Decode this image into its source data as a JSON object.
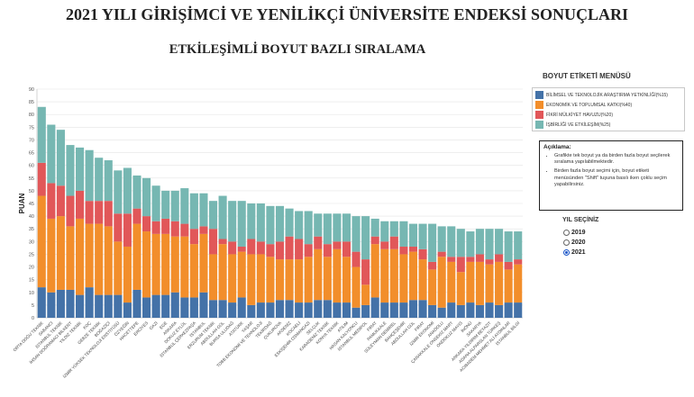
{
  "page": {
    "title": "2021 YILI GİRİŞİMCİ VE YENİLİKÇİ ÜNİVERSİTE ENDEKSİ SONUÇLARI",
    "subtitle": "ETKİLEŞİMLİ BOYUT BAZLI SIRALAMA"
  },
  "legend": {
    "title": "BOYUT ETİKETİ MENÜSÜ",
    "items": [
      {
        "label": "BİLİMSEL VE TEKNOLOJİK ARAŞTIRMA YETKİNLİĞİ(%15)",
        "color": "#4472a8"
      },
      {
        "label": "EKONOMİK VE TOPLUMSAL KATKI(%40)",
        "color": "#f28e2b"
      },
      {
        "label": "FİKRİ MÜLKİYET HAVUZU(%20)",
        "color": "#e15759"
      },
      {
        "label": "İŞBİRLİĞİ VE ETKİLEŞİM(%25)",
        "color": "#76b7b2"
      }
    ]
  },
  "note": {
    "title": "Açıklama:",
    "items": [
      "Grafikte tek boyut ya da birden fazla boyut seçilerek sıralama yapılabilmektedir.",
      "Birden fazla boyut seçimi için, boyut etiketi menüsünden \"Shift\" tuşuna basılı iken çoklu seçim yapabilirsiniz."
    ]
  },
  "year_selector": {
    "title": "YIL SEÇİNİZ",
    "options": [
      {
        "label": "2019",
        "selected": false
      },
      {
        "label": "2020",
        "selected": false
      },
      {
        "label": "2021",
        "selected": true
      }
    ]
  },
  "chart_data": {
    "type": "bar",
    "stacked": true,
    "ylabel": "PUAN",
    "xlabel": "",
    "ylim": [
      0,
      90
    ],
    "yticks": [
      0,
      5,
      10,
      15,
      20,
      25,
      30,
      35,
      40,
      45,
      50,
      55,
      60,
      65,
      70,
      75,
      80,
      85,
      90
    ],
    "grid": true,
    "categories": [
      "ORTA DOĞU TEKNİK",
      "SABANCI",
      "İSTANBUL TEKNİK",
      "İHSAN DOĞRAMACI BİLKENT",
      "YILDIZ TEKNİK",
      "KOÇ",
      "GEBZE TEKNİK",
      "BOĞAZİÇİ",
      "İZMİR YÜKSEK TEKNOLOJİ ENSTİTÜSÜ",
      "ÖZYEĞİN",
      "HACETTEPE",
      "ERCİYES",
      "GAZİ",
      "EGE",
      "ANKARA",
      "DOKUZ EYLÜL",
      "İSTANBUL ÇERKEZPAŞA",
      "İSTANBUL",
      "ERZURUM TEKNİK",
      "ABDULLAH GÜL",
      "BURSA ULUDAĞ",
      "ATATÜRK",
      "YAŞAR",
      "TOBB EKONOMİ VE TEKNOLOJİ",
      "TEKİRDAĞ",
      "ÇUKUROVA",
      "AKDENİZ",
      "KOCAELİ",
      "ESKİŞEHİR OSMANGAZİ",
      "SELÇUK",
      "KARADENİZ TEKNİK",
      "KONYA TEKNİK",
      "ATILIM",
      "HASAN KALYONCU",
      "İSTANBUL MEDİPOL",
      "FIRAT",
      "PAMUKKALE",
      "SÜLEYMAN DEMİREL",
      "BAHÇEŞEHİR",
      "ABDULLAH GÜL",
      "FIRAT",
      "İZMİR EKONOMİ",
      "ANADOLU",
      "ÇANAKKALE ONSEKİZ MART",
      "ONDOKUZ MAYIS",
      "İNÖNÜ",
      "SAKARYA",
      "ANKARA YILDIRIM BEYAZIT",
      "ADANA ALPARSLAN TÜRKEŞ",
      "ACIBADEM MEHMET ALİ AYDINLAR",
      "İSTANBUL BİLGİ"
    ],
    "series": [
      {
        "name": "BİLİMSEL VE TEKNOLOJİK ARAŞTIRMA YETKİNLİĞİ(%15)",
        "color": "#4472a8",
        "values": [
          12,
          10,
          11,
          11,
          9,
          12,
          9,
          9,
          9,
          6,
          11,
          8,
          9,
          9,
          10,
          8,
          8,
          10,
          7,
          7,
          6,
          8,
          5,
          6,
          6,
          7,
          7,
          6,
          6,
          7,
          7,
          6,
          6,
          4,
          5,
          8,
          6,
          6,
          6,
          7,
          7,
          5,
          4,
          6,
          5,
          6,
          5,
          6,
          5,
          6,
          6
        ]
      },
      {
        "name": "EKONOMİK VE TOPLUMSAL KATKI(%40)",
        "color": "#f28e2b",
        "values": [
          36,
          29,
          29,
          25,
          30,
          25,
          28,
          27,
          21,
          22,
          26,
          26,
          24,
          24,
          22,
          24,
          21,
          23,
          18,
          22,
          19,
          18,
          20,
          19,
          18,
          16,
          16,
          17,
          18,
          20,
          17,
          21,
          18,
          16,
          8,
          21,
          21,
          21,
          19,
          19,
          16,
          14,
          20,
          16,
          13,
          16,
          17,
          15,
          17,
          13,
          15
        ]
      },
      {
        "name": "FİKRİ MÜLKİYET HAVUZU(%20)",
        "color": "#e15759",
        "values": [
          13,
          14,
          12,
          12,
          11,
          9,
          9,
          10,
          11,
          13,
          6,
          6,
          5,
          6,
          6,
          5,
          6,
          3,
          10,
          2,
          5,
          2,
          6,
          5,
          5,
          7,
          9,
          8,
          5,
          5,
          5,
          3,
          6,
          6,
          10,
          3,
          3,
          5,
          3,
          2,
          4,
          3,
          2,
          2,
          6,
          2,
          3,
          2,
          3,
          3,
          2
        ]
      },
      {
        "name": "İŞBİRLİĞİ VE ETKİLEŞİM(%25)",
        "color": "#76b7b2",
        "values": [
          22,
          23,
          22,
          20,
          17,
          20,
          17,
          16,
          17,
          18,
          13,
          15,
          14,
          11,
          12,
          14,
          14,
          13,
          11,
          17,
          16,
          18,
          14,
          15,
          15,
          14,
          11,
          11,
          13,
          9,
          12,
          11,
          11,
          14,
          17,
          7,
          8,
          6,
          10,
          9,
          10,
          15,
          10,
          12,
          11,
          10,
          10,
          12,
          10,
          12,
          11
        ]
      }
    ]
  }
}
